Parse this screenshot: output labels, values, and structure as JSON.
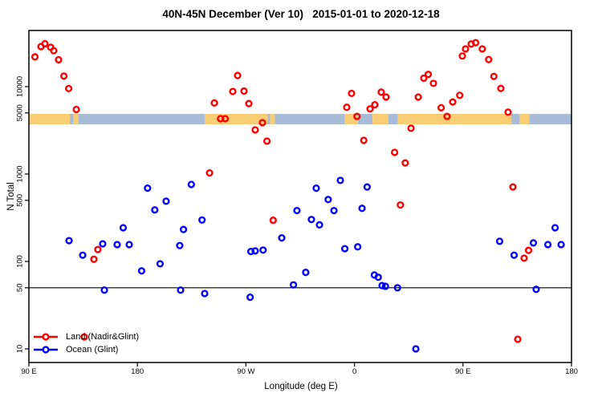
{
  "title": "40N-45N December (Ver 10)   2015-01-01 to 2020-12-18",
  "axes": {
    "x": {
      "label": "Longitude (deg E)",
      "start_deg": 90,
      "end_deg": 540,
      "ticks": [
        {
          "deg": 90,
          "label": "90 E"
        },
        {
          "deg": 180,
          "label": "180"
        },
        {
          "deg": 270,
          "label": "90 W"
        },
        {
          "deg": 360,
          "label": "0"
        },
        {
          "deg": 450,
          "label": "90 E"
        },
        {
          "deg": 540,
          "label": "180"
        }
      ]
    },
    "y": {
      "label": "N Total",
      "scale": "log",
      "ticks": [
        {
          "value": 10,
          "label": "10"
        },
        {
          "value": 50,
          "label": "50"
        },
        {
          "value": 100,
          "label": "100"
        },
        {
          "value": 500,
          "label": "500"
        },
        {
          "value": 1000,
          "label": "1000"
        },
        {
          "value": 5000,
          "label": "5000"
        },
        {
          "value": 10000,
          "label": "10000"
        }
      ]
    }
  },
  "reference_line": {
    "value": 50,
    "color": "#000000"
  },
  "map_strip": {
    "land_color": "#F8CD74",
    "ocean_color": "#A8BCD8",
    "segments": [
      {
        "from": 90,
        "to": 124,
        "surface": "land"
      },
      {
        "from": 124,
        "to": 127,
        "surface": "ocean"
      },
      {
        "from": 127,
        "to": 131,
        "surface": "land"
      },
      {
        "from": 131,
        "to": 236,
        "surface": "ocean"
      },
      {
        "from": 236,
        "to": 288,
        "surface": "land"
      },
      {
        "from": 288,
        "to": 290,
        "surface": "ocean"
      },
      {
        "from": 290,
        "to": 294,
        "surface": "land"
      },
      {
        "from": 294,
        "to": 352,
        "surface": "ocean"
      },
      {
        "from": 352,
        "to": 363,
        "surface": "land"
      },
      {
        "from": 363,
        "to": 375,
        "surface": "ocean"
      },
      {
        "from": 375,
        "to": 388,
        "surface": "land"
      },
      {
        "from": 388,
        "to": 396,
        "surface": "ocean"
      },
      {
        "from": 396,
        "to": 490,
        "surface": "land"
      },
      {
        "from": 490,
        "to": 497,
        "surface": "ocean"
      },
      {
        "from": 497,
        "to": 505,
        "surface": "land"
      },
      {
        "from": 505,
        "to": 540,
        "surface": "ocean"
      }
    ]
  },
  "legend": {
    "items": [
      {
        "label": "Land (Nadir&Glint)",
        "color": "#FF0000"
      },
      {
        "label": "Ocean (Glint)",
        "color": "#0000FF"
      }
    ]
  },
  "chart_data": {
    "type": "scatter",
    "title": "40N-45N December (Ver 10)   2015-01-01 to 2020-12-18",
    "xlabel": "Longitude (deg E)",
    "ylabel": "N Total",
    "x_note": "longitude axis runs eastward from 90E, wrapping through 180, 90W, 0, 90E to 180 (plotted as 90..540 deg)",
    "yscale": "log",
    "ylim": [
      3.5,
      45000
    ],
    "series": [
      {
        "name": "Land (Nadir&Glint)",
        "color": "#FF0000",
        "points": [
          {
            "x": 95.0,
            "n": 21900
          },
          {
            "x": 100.0,
            "n": 28700
          },
          {
            "x": 103.3,
            "n": 31000
          },
          {
            "x": 108.0,
            "n": 28200
          },
          {
            "x": 110.6,
            "n": 25800
          },
          {
            "x": 114.6,
            "n": 20300
          },
          {
            "x": 119.0,
            "n": 13200
          },
          {
            "x": 123.0,
            "n": 9500
          },
          {
            "x": 129.3,
            "n": 5480
          },
          {
            "x": 135.9,
            "n": 13.7
          },
          {
            "x": 143.9,
            "n": 106
          },
          {
            "x": 147.2,
            "n": 137
          },
          {
            "x": 239.8,
            "n": 1030
          },
          {
            "x": 243.8,
            "n": 6500
          },
          {
            "x": 248.9,
            "n": 4300
          },
          {
            "x": 252.8,
            "n": 4300
          },
          {
            "x": 259.1,
            "n": 8800
          },
          {
            "x": 263.1,
            "n": 13400
          },
          {
            "x": 268.4,
            "n": 8900
          },
          {
            "x": 272.4,
            "n": 6400
          },
          {
            "x": 277.7,
            "n": 3200
          },
          {
            "x": 283.7,
            "n": 3870
          },
          {
            "x": 287.4,
            "n": 2380
          },
          {
            "x": 292.6,
            "n": 296
          },
          {
            "x": 353.6,
            "n": 5800
          },
          {
            "x": 357.6,
            "n": 8370
          },
          {
            "x": 362.1,
            "n": 4570
          },
          {
            "x": 367.7,
            "n": 2430
          },
          {
            "x": 372.9,
            "n": 5570
          },
          {
            "x": 376.9,
            "n": 6200
          },
          {
            "x": 382.2,
            "n": 8650
          },
          {
            "x": 386.2,
            "n": 7600
          },
          {
            "x": 393.3,
            "n": 1770
          },
          {
            "x": 398.1,
            "n": 443
          },
          {
            "x": 402.1,
            "n": 1340
          },
          {
            "x": 406.9,
            "n": 3340
          },
          {
            "x": 412.9,
            "n": 7600
          },
          {
            "x": 417.5,
            "n": 12500
          },
          {
            "x": 421.2,
            "n": 13800
          },
          {
            "x": 425.5,
            "n": 10900
          },
          {
            "x": 431.9,
            "n": 5730
          },
          {
            "x": 436.8,
            "n": 4570
          },
          {
            "x": 441.5,
            "n": 6680
          },
          {
            "x": 447.3,
            "n": 7960
          },
          {
            "x": 449.5,
            "n": 22400
          },
          {
            "x": 452.1,
            "n": 27000
          },
          {
            "x": 456.8,
            "n": 30700
          },
          {
            "x": 460.5,
            "n": 31800
          },
          {
            "x": 466.0,
            "n": 27000
          },
          {
            "x": 471.3,
            "n": 20400
          },
          {
            "x": 475.6,
            "n": 13100
          },
          {
            "x": 481.4,
            "n": 9530
          },
          {
            "x": 487.4,
            "n": 5100
          },
          {
            "x": 491.4,
            "n": 712
          },
          {
            "x": 495.4,
            "n": 12.9
          },
          {
            "x": 500.7,
            "n": 109
          },
          {
            "x": 504.4,
            "n": 134
          }
        ]
      },
      {
        "name": "Ocean (Glint)",
        "color": "#0000FF",
        "points": [
          {
            "x": 123.3,
            "n": 173
          },
          {
            "x": 134.6,
            "n": 118
          },
          {
            "x": 151.2,
            "n": 159
          },
          {
            "x": 152.6,
            "n": 47
          },
          {
            "x": 163.2,
            "n": 156
          },
          {
            "x": 168.2,
            "n": 243
          },
          {
            "x": 173.2,
            "n": 156
          },
          {
            "x": 183.5,
            "n": 78
          },
          {
            "x": 188.4,
            "n": 690
          },
          {
            "x": 194.4,
            "n": 389
          },
          {
            "x": 198.8,
            "n": 94
          },
          {
            "x": 203.8,
            "n": 489
          },
          {
            "x": 215.1,
            "n": 152
          },
          {
            "x": 215.8,
            "n": 47
          },
          {
            "x": 218.2,
            "n": 232
          },
          {
            "x": 224.7,
            "n": 760
          },
          {
            "x": 233.6,
            "n": 298
          },
          {
            "x": 235.8,
            "n": 43
          },
          {
            "x": 273.5,
            "n": 39
          },
          {
            "x": 274.1,
            "n": 130
          },
          {
            "x": 277.7,
            "n": 132
          },
          {
            "x": 284.2,
            "n": 135
          },
          {
            "x": 299.7,
            "n": 186
          },
          {
            "x": 309.4,
            "n": 54
          },
          {
            "x": 312.3,
            "n": 382
          },
          {
            "x": 319.6,
            "n": 75
          },
          {
            "x": 324.3,
            "n": 302
          },
          {
            "x": 328.3,
            "n": 689
          },
          {
            "x": 331.0,
            "n": 262
          },
          {
            "x": 338.2,
            "n": 511
          },
          {
            "x": 343.0,
            "n": 382
          },
          {
            "x": 348.3,
            "n": 846
          },
          {
            "x": 352.0,
            "n": 140
          },
          {
            "x": 362.7,
            "n": 147
          },
          {
            "x": 366.3,
            "n": 405
          },
          {
            "x": 370.5,
            "n": 711
          },
          {
            "x": 376.5,
            "n": 70
          },
          {
            "x": 379.7,
            "n": 66
          },
          {
            "x": 382.9,
            "n": 53
          },
          {
            "x": 385.7,
            "n": 52
          },
          {
            "x": 395.7,
            "n": 50
          },
          {
            "x": 410.9,
            "n": 10
          },
          {
            "x": 480.4,
            "n": 170
          },
          {
            "x": 492.4,
            "n": 118
          },
          {
            "x": 508.4,
            "n": 163
          },
          {
            "x": 510.7,
            "n": 48
          },
          {
            "x": 520.4,
            "n": 156
          },
          {
            "x": 526.4,
            "n": 243
          },
          {
            "x": 531.4,
            "n": 156
          }
        ]
      }
    ]
  }
}
